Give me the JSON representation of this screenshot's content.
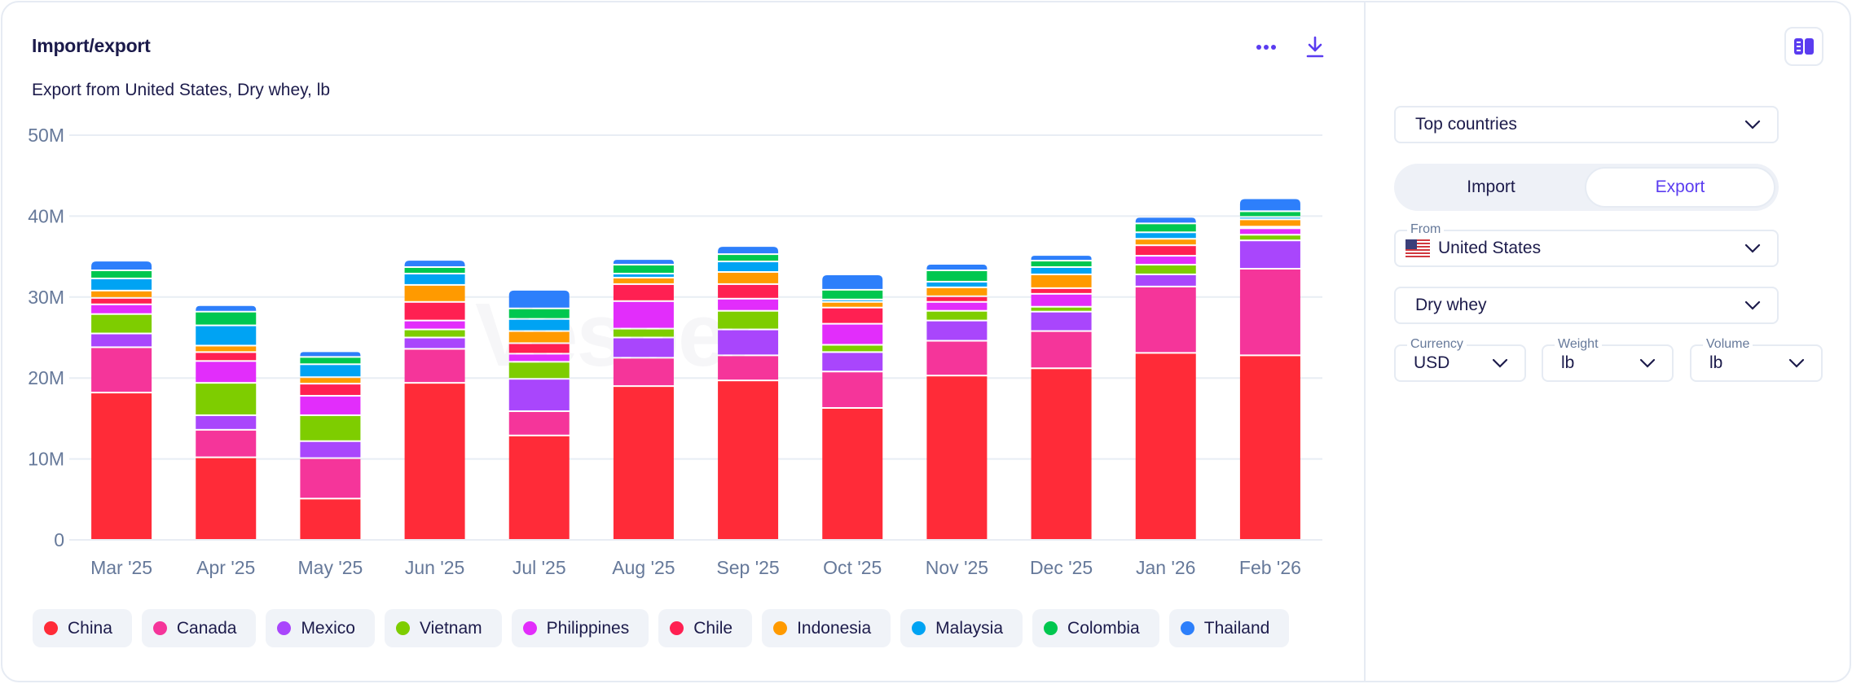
{
  "header": {
    "title": "Import/export",
    "subtitle": "Export from United States, Dry whey, lb",
    "more_icon": "more-horizontal-icon",
    "download_icon": "download-icon"
  },
  "watermark": "Vesper",
  "sidebar": {
    "panel_toggle_icon": "panel-layout-icon",
    "view_select": "Top countries",
    "direction": {
      "options": [
        "Import",
        "Export"
      ],
      "selected": "Export"
    },
    "from": {
      "label": "From",
      "value": "United States",
      "flag_icon": "us-flag-icon"
    },
    "product": {
      "value": "Dry whey"
    },
    "currency": {
      "label": "Currency",
      "value": "USD"
    },
    "weight": {
      "label": "Weight",
      "value": "lb"
    },
    "volume": {
      "label": "Volume",
      "value": "lb"
    }
  },
  "colors": {
    "accent": "#5a3cf0",
    "China": "#ff2b38",
    "Canada": "#f5359a",
    "Mexico": "#a946fc",
    "Vietnam": "#7ecd00",
    "Philippines": "#e22dfb",
    "Chile": "#ff2052",
    "Indonesia": "#ff9a00",
    "Malaysia": "#00a3f3",
    "Colombia": "#00c74f",
    "Thailand": "#2d7ffb"
  },
  "chart_data": {
    "type": "bar",
    "stacked": true,
    "title": "Export from United States, Dry whey, lb",
    "xlabel": "",
    "ylabel": "",
    "ylim": [
      0,
      50000000
    ],
    "yticks": [
      0,
      10000000,
      20000000,
      30000000,
      40000000,
      50000000
    ],
    "ytick_labels": [
      "0",
      "10M",
      "20M",
      "30M",
      "40M",
      "50M"
    ],
    "grid": true,
    "legend_position": "bottom",
    "categories": [
      "Mar '25",
      "Apr '25",
      "May '25",
      "Jun '25",
      "Jul '25",
      "Aug '25",
      "Sep '25",
      "Oct '25",
      "Nov '25",
      "Dec '25",
      "Jan '26",
      "Feb '26"
    ],
    "series": [
      {
        "name": "China",
        "values": [
          18.2,
          10.2,
          5.1,
          19.4,
          12.9,
          19.0,
          19.7,
          16.3,
          20.3,
          21.2,
          23.1,
          22.8
        ]
      },
      {
        "name": "Canada",
        "values": [
          5.6,
          3.4,
          5.0,
          4.2,
          3.0,
          3.5,
          3.1,
          4.5,
          4.3,
          4.6,
          8.2,
          10.7
        ]
      },
      {
        "name": "Mexico",
        "values": [
          1.7,
          1.8,
          2.1,
          1.4,
          4.0,
          2.5,
          3.2,
          2.4,
          2.5,
          2.4,
          1.5,
          3.5
        ]
      },
      {
        "name": "Vietnam",
        "values": [
          2.4,
          4.0,
          3.2,
          1.0,
          2.1,
          1.1,
          2.3,
          0.9,
          1.2,
          0.6,
          1.2,
          0.7
        ]
      },
      {
        "name": "Philippines",
        "values": [
          1.2,
          2.7,
          2.4,
          1.1,
          1.0,
          3.4,
          1.5,
          2.6,
          1.1,
          1.6,
          1.1,
          0.8
        ]
      },
      {
        "name": "Chile",
        "values": [
          0.8,
          1.1,
          1.5,
          2.3,
          1.3,
          2.1,
          1.8,
          2.0,
          0.7,
          0.7,
          1.3,
          0.2
        ]
      },
      {
        "name": "Indonesia",
        "values": [
          0.9,
          0.8,
          0.8,
          2.1,
          1.5,
          0.8,
          1.5,
          0.7,
          1.1,
          1.7,
          0.8,
          0.9
        ]
      },
      {
        "name": "Malaysia",
        "values": [
          1.5,
          2.5,
          1.6,
          1.4,
          1.5,
          0.5,
          1.3,
          0.3,
          0.7,
          0.9,
          0.8,
          0.3
        ]
      },
      {
        "name": "Colombia",
        "values": [
          1.0,
          1.7,
          0.9,
          0.8,
          1.3,
          1.1,
          0.9,
          1.2,
          1.4,
          0.8,
          1.1,
          0.7
        ]
      },
      {
        "name": "Thailand",
        "values": [
          1.1,
          0.7,
          0.6,
          0.8,
          2.2,
          0.6,
          0.9,
          1.8,
          0.7,
          0.6,
          0.7,
          1.5
        ]
      }
    ],
    "value_unit": "million lb"
  }
}
